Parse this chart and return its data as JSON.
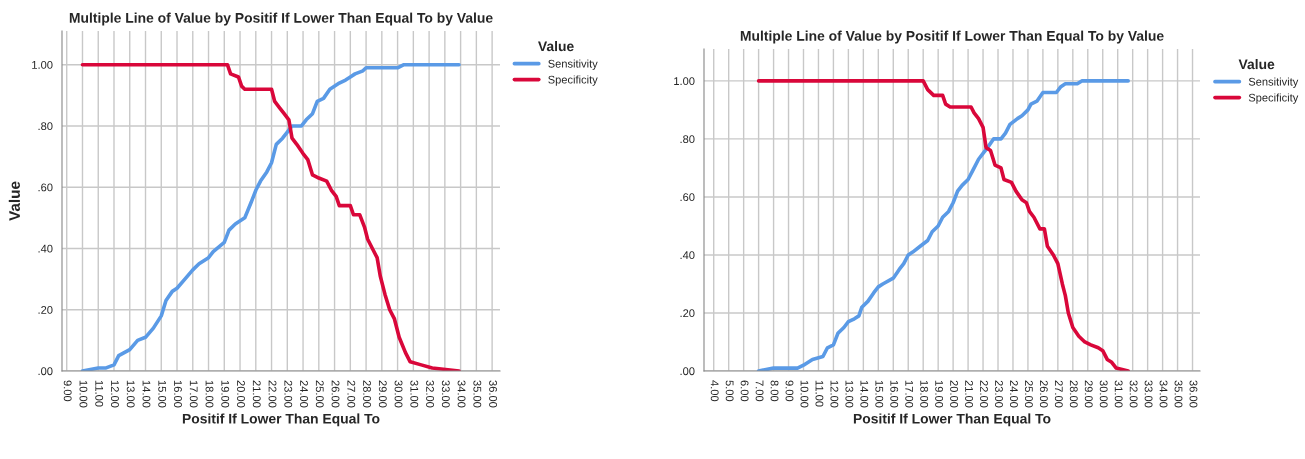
{
  "chart_data": [
    {
      "type": "line",
      "title": "Multiple Line of Value by Positif If Lower Than Equal To by Value",
      "xlabel": "Positif If Lower Than Equal To",
      "ylabel": "Value",
      "legend_title": "Value",
      "legend": "right",
      "grid": true,
      "xlim": [
        8.7,
        36.5
      ],
      "ylim": [
        0,
        1.11
      ],
      "xticks": [
        {
          "value": 9,
          "label": "9.00"
        },
        {
          "value": 10,
          "label": "10.00"
        },
        {
          "value": 11,
          "label": "11.00"
        },
        {
          "value": 12,
          "label": "12.00"
        },
        {
          "value": 13,
          "label": "13.00"
        },
        {
          "value": 14,
          "label": "14.00"
        },
        {
          "value": 15,
          "label": "15.00"
        },
        {
          "value": 16,
          "label": "16.00"
        },
        {
          "value": 17,
          "label": "17.00"
        },
        {
          "value": 18,
          "label": "18.00"
        },
        {
          "value": 19,
          "label": "19.00"
        },
        {
          "value": 20,
          "label": "20.00"
        },
        {
          "value": 21,
          "label": "21.00"
        },
        {
          "value": 22,
          "label": "22.00"
        },
        {
          "value": 23,
          "label": "23.00"
        },
        {
          "value": 24,
          "label": "24.00"
        },
        {
          "value": 25,
          "label": "25.00"
        },
        {
          "value": 26,
          "label": "26.00"
        },
        {
          "value": 27,
          "label": "27.00"
        },
        {
          "value": 28,
          "label": "28.00"
        },
        {
          "value": 29,
          "label": "29.00"
        },
        {
          "value": 30,
          "label": "30.00"
        },
        {
          "value": 31,
          "label": "31.00"
        },
        {
          "value": 32,
          "label": "32.00"
        },
        {
          "value": 33,
          "label": "33.00"
        },
        {
          "value": 34,
          "label": "34.00"
        },
        {
          "value": 35,
          "label": "35.00"
        },
        {
          "value": 36,
          "label": "36.00"
        }
      ],
      "yticks": [
        {
          "value": 0,
          "label": ".00"
        },
        {
          "value": 0.2,
          "label": ".20"
        },
        {
          "value": 0.4,
          "label": ".40"
        },
        {
          "value": 0.6,
          "label": ".60"
        },
        {
          "value": 0.8,
          "label": ".80"
        },
        {
          "value": 1,
          "label": "1.00"
        }
      ],
      "series": [
        {
          "name": "Sensitivity",
          "color": "#5a9ae6",
          "x": [
            10.0,
            11.0,
            11.5,
            12.0,
            12.3,
            13.0,
            13.5,
            14.0,
            14.5,
            15.0,
            15.3,
            15.7,
            16.0,
            16.5,
            17.0,
            17.4,
            18.0,
            18.3,
            19.0,
            19.3,
            19.7,
            20.3,
            20.7,
            21.0,
            21.3,
            21.7,
            22.0,
            22.3,
            22.7,
            23.0,
            23.3,
            23.9,
            24.2,
            24.6,
            24.9,
            25.3,
            25.7,
            26.3,
            26.7,
            27.0,
            27.3,
            27.8,
            28.0,
            30.0,
            30.4,
            33.9
          ],
          "values": [
            0.0,
            0.01,
            0.01,
            0.02,
            0.05,
            0.07,
            0.1,
            0.11,
            0.14,
            0.18,
            0.23,
            0.26,
            0.27,
            0.3,
            0.33,
            0.35,
            0.37,
            0.39,
            0.42,
            0.46,
            0.48,
            0.5,
            0.55,
            0.59,
            0.62,
            0.65,
            0.68,
            0.74,
            0.76,
            0.78,
            0.8,
            0.8,
            0.82,
            0.84,
            0.88,
            0.89,
            0.92,
            0.94,
            0.95,
            0.96,
            0.97,
            0.98,
            0.99,
            0.99,
            1.0,
            1.0
          ]
        },
        {
          "name": "Specificity",
          "color": "#d9073a",
          "x": [
            10.0,
            19.2,
            19.4,
            19.9,
            20.1,
            20.3,
            22.0,
            22.2,
            22.5,
            22.8,
            23.1,
            23.3,
            23.6,
            24.0,
            24.3,
            24.6,
            25.0,
            25.5,
            25.8,
            26.1,
            26.3,
            27.0,
            27.2,
            27.6,
            27.9,
            28.1,
            28.4,
            28.7,
            28.9,
            29.2,
            29.5,
            29.8,
            30.1,
            30.5,
            30.8,
            31.5,
            32.2,
            33.9
          ],
          "values": [
            1.0,
            1.0,
            0.97,
            0.96,
            0.93,
            0.92,
            0.92,
            0.88,
            0.86,
            0.84,
            0.82,
            0.76,
            0.74,
            0.71,
            0.69,
            0.64,
            0.63,
            0.62,
            0.59,
            0.57,
            0.54,
            0.54,
            0.51,
            0.51,
            0.47,
            0.43,
            0.4,
            0.37,
            0.31,
            0.25,
            0.2,
            0.17,
            0.11,
            0.06,
            0.03,
            0.02,
            0.01,
            0.0
          ]
        }
      ]
    },
    {
      "type": "line",
      "title": "Multiple Line of Value by Positif If Lower Than Equal To by Value",
      "xlabel": "Positif If Lower Than Equal To",
      "legend_title": "Value",
      "legend": "right",
      "grid": true,
      "xlim": [
        3.35,
        36.5
      ],
      "ylim": [
        0,
        1.11
      ],
      "xticks": [
        {
          "value": 4,
          "label": "4.00"
        },
        {
          "value": 5,
          "label": "5.00"
        },
        {
          "value": 6,
          "label": "6.00"
        },
        {
          "value": 7,
          "label": "7.00"
        },
        {
          "value": 8,
          "label": "8.00"
        },
        {
          "value": 9,
          "label": "9.00"
        },
        {
          "value": 10,
          "label": "10.00"
        },
        {
          "value": 11,
          "label": "11.00"
        },
        {
          "value": 12,
          "label": "12.00"
        },
        {
          "value": 13,
          "label": "13.00"
        },
        {
          "value": 14,
          "label": "14.00"
        },
        {
          "value": 15,
          "label": "15.00"
        },
        {
          "value": 16,
          "label": "16.00"
        },
        {
          "value": 17,
          "label": "17.00"
        },
        {
          "value": 18,
          "label": "18.00"
        },
        {
          "value": 19,
          "label": "19.00"
        },
        {
          "value": 20,
          "label": "20.00"
        },
        {
          "value": 21,
          "label": "21.00"
        },
        {
          "value": 22,
          "label": "22.00"
        },
        {
          "value": 23,
          "label": "23.00"
        },
        {
          "value": 24,
          "label": "24.00"
        },
        {
          "value": 25,
          "label": "25.00"
        },
        {
          "value": 26,
          "label": "26.00"
        },
        {
          "value": 27,
          "label": "27.00"
        },
        {
          "value": 28,
          "label": "28.00"
        },
        {
          "value": 29,
          "label": "29.00"
        },
        {
          "value": 30,
          "label": "30.00"
        },
        {
          "value": 31,
          "label": "31.00"
        },
        {
          "value": 32,
          "label": "32.00"
        },
        {
          "value": 33,
          "label": "33.00"
        },
        {
          "value": 34,
          "label": "34.00"
        },
        {
          "value": 35,
          "label": "35.00"
        },
        {
          "value": 36,
          "label": "36.00"
        }
      ],
      "yticks": [
        {
          "value": 0,
          "label": ".00"
        },
        {
          "value": 0.2,
          "label": ".20"
        },
        {
          "value": 0.4,
          "label": ".40"
        },
        {
          "value": 0.6,
          "label": ".60"
        },
        {
          "value": 0.8,
          "label": ".80"
        },
        {
          "value": 1,
          "label": "1.00"
        }
      ],
      "series": [
        {
          "name": "Sensitivity",
          "color": "#5a9ae6",
          "x": [
            7.0,
            8.0,
            9.0,
            9.6,
            10.0,
            10.6,
            11.3,
            11.6,
            12.0,
            12.3,
            12.7,
            13.0,
            13.4,
            13.7,
            13.9,
            14.3,
            14.7,
            15.0,
            15.3,
            16.0,
            16.4,
            16.7,
            17.0,
            17.3,
            17.8,
            18.3,
            18.6,
            19.0,
            19.3,
            19.7,
            20.0,
            20.3,
            20.6,
            21.0,
            21.3,
            21.7,
            22.0,
            22.3,
            22.7,
            23.2,
            23.5,
            23.8,
            24.3,
            24.6,
            25.0,
            25.2,
            25.6,
            26.0,
            26.3,
            26.9,
            27.2,
            27.5,
            28.3,
            28.6,
            31.7
          ],
          "values": [
            0.0,
            0.01,
            0.01,
            0.01,
            0.02,
            0.04,
            0.05,
            0.08,
            0.09,
            0.13,
            0.15,
            0.17,
            0.18,
            0.19,
            0.22,
            0.24,
            0.27,
            0.29,
            0.3,
            0.32,
            0.35,
            0.37,
            0.4,
            0.41,
            0.43,
            0.45,
            0.48,
            0.5,
            0.53,
            0.55,
            0.58,
            0.62,
            0.64,
            0.66,
            0.69,
            0.73,
            0.75,
            0.77,
            0.8,
            0.8,
            0.82,
            0.85,
            0.87,
            0.88,
            0.9,
            0.92,
            0.93,
            0.96,
            0.96,
            0.96,
            0.98,
            0.99,
            0.99,
            1.0,
            1.0
          ]
        },
        {
          "name": "Specificity",
          "color": "#d9073a",
          "x": [
            7.0,
            18.0,
            18.3,
            18.7,
            19.3,
            19.5,
            19.8,
            21.2,
            21.4,
            21.7,
            22.0,
            22.2,
            22.5,
            22.8,
            23.2,
            23.4,
            23.9,
            24.2,
            24.6,
            24.9,
            25.1,
            25.4,
            25.8,
            26.1,
            26.3,
            26.7,
            27.0,
            27.3,
            27.5,
            27.7,
            28.0,
            28.4,
            28.8,
            29.2,
            29.7,
            30.0,
            30.3,
            30.6,
            30.9,
            31.7
          ],
          "values": [
            1.0,
            1.0,
            0.97,
            0.95,
            0.95,
            0.92,
            0.91,
            0.91,
            0.89,
            0.87,
            0.84,
            0.77,
            0.76,
            0.71,
            0.7,
            0.66,
            0.65,
            0.62,
            0.59,
            0.58,
            0.55,
            0.53,
            0.49,
            0.49,
            0.43,
            0.4,
            0.37,
            0.3,
            0.26,
            0.2,
            0.15,
            0.12,
            0.1,
            0.09,
            0.08,
            0.07,
            0.04,
            0.03,
            0.01,
            0.0
          ]
        }
      ]
    }
  ]
}
